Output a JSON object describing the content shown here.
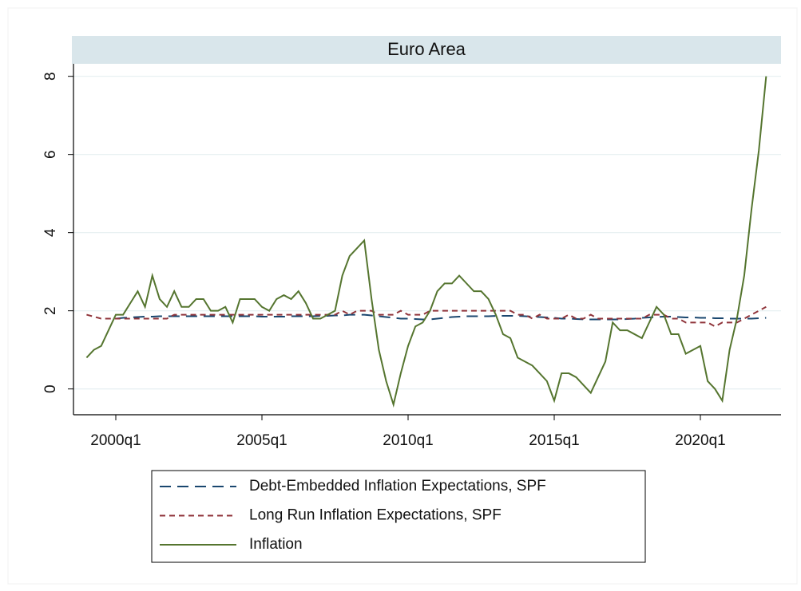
{
  "chart_data": {
    "type": "line",
    "title": "Euro Area",
    "x": [
      "1999q1",
      "1999q2",
      "1999q3",
      "1999q4",
      "2000q1",
      "2000q2",
      "2000q3",
      "2000q4",
      "2001q1",
      "2001q2",
      "2001q3",
      "2001q4",
      "2002q1",
      "2002q2",
      "2002q3",
      "2002q4",
      "2003q1",
      "2003q2",
      "2003q3",
      "2003q4",
      "2004q1",
      "2004q2",
      "2004q3",
      "2004q4",
      "2005q1",
      "2005q2",
      "2005q3",
      "2005q4",
      "2006q1",
      "2006q2",
      "2006q3",
      "2006q4",
      "2007q1",
      "2007q2",
      "2007q3",
      "2007q4",
      "2008q1",
      "2008q2",
      "2008q3",
      "2008q4",
      "2009q1",
      "2009q2",
      "2009q3",
      "2009q4",
      "2010q1",
      "2010q2",
      "2010q3",
      "2010q4",
      "2011q1",
      "2011q2",
      "2011q3",
      "2011q4",
      "2012q1",
      "2012q2",
      "2012q3",
      "2012q4",
      "2013q1",
      "2013q2",
      "2013q3",
      "2013q4",
      "2014q1",
      "2014q2",
      "2014q3",
      "2014q4",
      "2015q1",
      "2015q2",
      "2015q3",
      "2015q4",
      "2016q1",
      "2016q2",
      "2016q3",
      "2016q4",
      "2017q1",
      "2017q2",
      "2017q3",
      "2017q4",
      "2018q1",
      "2018q2",
      "2018q3",
      "2018q4",
      "2019q1",
      "2019q2",
      "2019q3",
      "2019q4",
      "2020q1",
      "2020q2",
      "2020q3",
      "2020q4",
      "2021q1",
      "2021q2",
      "2021q3",
      "2021q4",
      "2022q1",
      "2022q2"
    ],
    "xticks": [
      "2000q1",
      "2005q1",
      "2010q1",
      "2015q1",
      "2020q1"
    ],
    "ylim": [
      -0.66,
      8.32
    ],
    "yticks": [
      0,
      2,
      4,
      6,
      8
    ],
    "grid": true,
    "series": [
      {
        "name": "Debt-Embedded Inflation Expectations, SPF",
        "color": "#1a476f",
        "dash": "14 8",
        "values": [
          null,
          null,
          null,
          null,
          1.8,
          1.82,
          1.83,
          1.84,
          1.85,
          1.85,
          1.86,
          1.86,
          1.86,
          1.86,
          1.86,
          1.86,
          1.86,
          1.86,
          1.86,
          1.86,
          1.86,
          1.86,
          1.86,
          1.86,
          1.85,
          1.85,
          1.85,
          1.85,
          1.86,
          1.86,
          1.86,
          1.86,
          1.87,
          1.87,
          1.88,
          1.88,
          1.9,
          1.9,
          1.9,
          1.88,
          1.86,
          1.84,
          1.82,
          1.8,
          1.8,
          1.79,
          1.78,
          1.78,
          1.8,
          1.82,
          1.84,
          1.85,
          1.86,
          1.86,
          1.86,
          1.86,
          1.87,
          1.87,
          1.87,
          1.87,
          1.86,
          1.85,
          1.84,
          1.83,
          1.82,
          1.8,
          1.8,
          1.79,
          1.78,
          1.78,
          1.78,
          1.78,
          1.78,
          1.78,
          1.79,
          1.8,
          1.82,
          1.83,
          1.84,
          1.85,
          1.85,
          1.84,
          1.83,
          1.83,
          1.82,
          1.82,
          1.81,
          1.81,
          1.8,
          1.8,
          1.8,
          1.8,
          1.81,
          1.82
        ]
      },
      {
        "name": "Long Run Inflation Expectations, SPF",
        "color": "#90353b",
        "dash": "7 5",
        "values": [
          1.9,
          1.85,
          1.8,
          1.8,
          1.8,
          1.8,
          1.8,
          1.8,
          1.8,
          1.8,
          1.8,
          1.8,
          1.9,
          1.9,
          1.9,
          1.9,
          1.9,
          1.9,
          1.9,
          1.9,
          1.9,
          1.9,
          1.9,
          1.9,
          1.9,
          1.9,
          1.9,
          1.9,
          1.9,
          1.9,
          1.9,
          1.9,
          1.9,
          1.9,
          1.9,
          2.0,
          1.9,
          2.0,
          2.0,
          2.0,
          1.9,
          1.9,
          1.9,
          2.0,
          1.9,
          1.9,
          1.9,
          2.0,
          2.0,
          2.0,
          2.0,
          2.0,
          2.0,
          2.0,
          2.0,
          2.0,
          2.0,
          2.0,
          2.0,
          1.9,
          1.9,
          1.8,
          1.9,
          1.8,
          1.8,
          1.8,
          1.9,
          1.8,
          1.8,
          1.9,
          1.8,
          1.8,
          1.8,
          1.8,
          1.8,
          1.8,
          1.8,
          1.9,
          1.9,
          1.9,
          1.8,
          1.8,
          1.7,
          1.7,
          1.7,
          1.7,
          1.6,
          1.7,
          1.7,
          1.7,
          1.8,
          1.9,
          2.0,
          2.1
        ]
      },
      {
        "name": "Inflation",
        "color": "#55752f",
        "dash": "",
        "values": [
          0.8,
          1.0,
          1.1,
          1.5,
          1.9,
          1.9,
          2.2,
          2.5,
          2.1,
          2.9,
          2.3,
          2.1,
          2.5,
          2.1,
          2.1,
          2.3,
          2.3,
          2.0,
          2.0,
          2.1,
          1.7,
          2.3,
          2.3,
          2.3,
          2.1,
          2.0,
          2.3,
          2.4,
          2.3,
          2.5,
          2.2,
          1.8,
          1.8,
          1.9,
          2.0,
          2.9,
          3.4,
          3.6,
          3.8,
          2.3,
          1.0,
          0.2,
          -0.4,
          0.4,
          1.1,
          1.6,
          1.7,
          2.0,
          2.5,
          2.7,
          2.7,
          2.9,
          2.7,
          2.5,
          2.5,
          2.3,
          1.9,
          1.4,
          1.3,
          0.8,
          0.7,
          0.6,
          0.4,
          0.2,
          -0.3,
          0.4,
          0.4,
          0.3,
          0.1,
          -0.1,
          0.3,
          0.7,
          1.7,
          1.5,
          1.5,
          1.4,
          1.3,
          1.7,
          2.1,
          1.9,
          1.4,
          1.4,
          0.9,
          1.0,
          1.1,
          0.2,
          0.0,
          -0.3,
          1.0,
          1.8,
          2.9,
          4.6,
          6.1,
          8.0
        ]
      }
    ]
  }
}
